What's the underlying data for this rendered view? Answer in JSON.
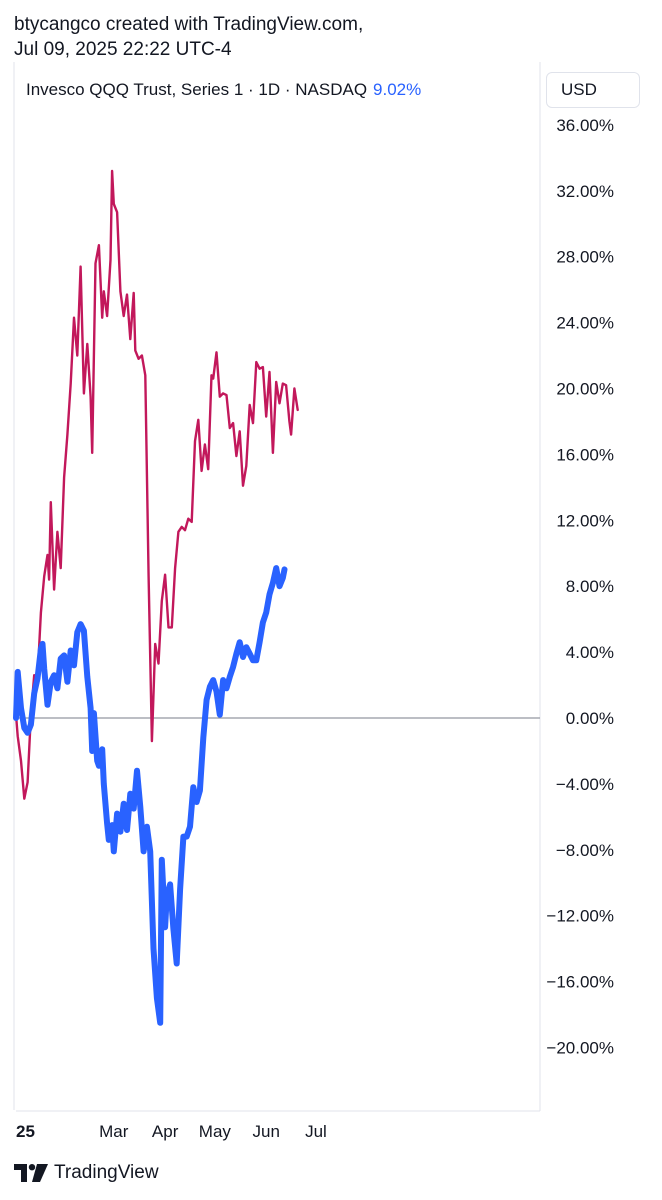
{
  "header": {
    "line1": "btycangco created with TradingView.com,",
    "line2": "Jul 09, 2025 22:22 UTC-4"
  },
  "legend": {
    "symbol": "Invesco QQQ Trust, Series 1 · 1D · NASDAQ",
    "change": "9.02%"
  },
  "currency_button": "USD",
  "footer": {
    "brand": "TradingView"
  },
  "colors": {
    "primary_series": "#2962ff",
    "comparison_series": "#c2185b",
    "baseline": "#9598a1"
  },
  "chart_data": {
    "type": "line",
    "title": "",
    "ylabel": "",
    "xlabel": "",
    "y_unit": "%",
    "ylim": [
      -22,
      38
    ],
    "y_ticks": [
      "36.00%",
      "32.00%",
      "28.00%",
      "24.00%",
      "20.00%",
      "16.00%",
      "12.00%",
      "8.00%",
      "4.00%",
      "0.00%",
      "−4.00%",
      "−8.00%",
      "−12.00%",
      "−16.00%",
      "−20.00%"
    ],
    "y_tick_values": [
      36,
      32,
      28,
      24,
      20,
      16,
      12,
      8,
      4,
      0,
      -4,
      -8,
      -12,
      -16,
      -20
    ],
    "x_ticks": [
      "25",
      "Mar",
      "Apr",
      "May",
      "Jun",
      "Jul"
    ],
    "x_tick_dates": [
      "2025-01-01",
      "2025-03-01",
      "2025-04-01",
      "2025-05-01",
      "2025-06-01",
      "2025-07-01"
    ],
    "x_range": [
      "2025-01-01",
      "2025-07-15"
    ],
    "grid": false,
    "baseline": 0,
    "series": [
      {
        "name": "Invesco QQQ Trust, Series 1",
        "color": "#2962ff",
        "points": [
          [
            "2025-01-01",
            0.0
          ],
          [
            "2025-01-02",
            2.8
          ],
          [
            "2025-01-04",
            0.6
          ],
          [
            "2025-01-06",
            -0.6
          ],
          [
            "2025-01-08",
            -0.9
          ],
          [
            "2025-01-10",
            -0.4
          ],
          [
            "2025-01-12",
            1.5
          ],
          [
            "2025-01-14",
            2.4
          ],
          [
            "2025-01-16",
            4.2
          ],
          [
            "2025-01-17",
            4.5
          ],
          [
            "2025-01-18",
            3.0
          ],
          [
            "2025-01-20",
            0.8
          ],
          [
            "2025-01-22",
            2.2
          ],
          [
            "2025-01-24",
            2.6
          ],
          [
            "2025-01-26",
            1.8
          ],
          [
            "2025-01-28",
            3.6
          ],
          [
            "2025-01-30",
            3.8
          ],
          [
            "2025-02-01",
            2.2
          ],
          [
            "2025-02-03",
            4.1
          ],
          [
            "2025-02-05",
            3.2
          ],
          [
            "2025-02-07",
            5.2
          ],
          [
            "2025-02-09",
            5.7
          ],
          [
            "2025-02-11",
            5.3
          ],
          [
            "2025-02-13",
            2.5
          ],
          [
            "2025-02-15",
            0.6
          ],
          [
            "2025-02-16",
            -2.0
          ],
          [
            "2025-02-17",
            0.3
          ],
          [
            "2025-02-19",
            -2.6
          ],
          [
            "2025-02-20",
            -2.9
          ],
          [
            "2025-02-22",
            -1.9
          ],
          [
            "2025-02-23",
            -4.0
          ],
          [
            "2025-02-25",
            -6.4
          ],
          [
            "2025-02-26",
            -7.4
          ],
          [
            "2025-02-28",
            -6.5
          ],
          [
            "2025-03-01",
            -8.1
          ],
          [
            "2025-03-03",
            -5.8
          ],
          [
            "2025-03-05",
            -6.9
          ],
          [
            "2025-03-07",
            -5.2
          ],
          [
            "2025-03-09",
            -6.8
          ],
          [
            "2025-03-11",
            -4.6
          ],
          [
            "2025-03-13",
            -5.5
          ],
          [
            "2025-03-15",
            -3.2
          ],
          [
            "2025-03-17",
            -5.4
          ],
          [
            "2025-03-19",
            -8.1
          ],
          [
            "2025-03-21",
            -6.6
          ],
          [
            "2025-03-23",
            -8.1
          ],
          [
            "2025-03-25",
            -14.0
          ],
          [
            "2025-03-27",
            -17.0
          ],
          [
            "2025-03-29",
            -18.5
          ],
          [
            "2025-03-30",
            -8.6
          ],
          [
            "2025-04-01",
            -12.7
          ],
          [
            "2025-04-02",
            -10.8
          ],
          [
            "2025-04-04",
            -10.1
          ],
          [
            "2025-04-06",
            -12.8
          ],
          [
            "2025-04-08",
            -14.9
          ],
          [
            "2025-04-10",
            -10.4
          ],
          [
            "2025-04-12",
            -7.2
          ],
          [
            "2025-04-14",
            -7.2
          ],
          [
            "2025-04-16",
            -6.6
          ],
          [
            "2025-04-18",
            -4.2
          ],
          [
            "2025-04-20",
            -5.1
          ],
          [
            "2025-04-22",
            -4.4
          ],
          [
            "2025-04-24",
            -1.2
          ],
          [
            "2025-04-26",
            1.1
          ],
          [
            "2025-04-28",
            1.9
          ],
          [
            "2025-04-30",
            2.3
          ],
          [
            "2025-05-02",
            1.6
          ],
          [
            "2025-05-04",
            0.2
          ],
          [
            "2025-05-06",
            2.3
          ],
          [
            "2025-05-08",
            1.8
          ],
          [
            "2025-05-10",
            2.5
          ],
          [
            "2025-05-12",
            3.1
          ],
          [
            "2025-05-14",
            3.9
          ],
          [
            "2025-05-16",
            4.6
          ],
          [
            "2025-05-18",
            3.7
          ],
          [
            "2025-05-20",
            4.3
          ],
          [
            "2025-05-22",
            3.9
          ],
          [
            "2025-05-24",
            3.5
          ],
          [
            "2025-05-26",
            3.5
          ],
          [
            "2025-05-28",
            4.6
          ],
          [
            "2025-05-30",
            5.8
          ],
          [
            "2025-06-01",
            6.4
          ],
          [
            "2025-06-03",
            7.5
          ],
          [
            "2025-06-05",
            8.2
          ],
          [
            "2025-06-07",
            9.1
          ],
          [
            "2025-06-09",
            8.0
          ],
          [
            "2025-06-11",
            8.5
          ],
          [
            "2025-06-12",
            9.02
          ]
        ]
      },
      {
        "name": "",
        "color": "#c2185b",
        "points": [
          [
            "2025-01-01",
            0.2
          ],
          [
            "2025-01-02",
            -1.1
          ],
          [
            "2025-01-04",
            -2.6
          ],
          [
            "2025-01-06",
            -4.9
          ],
          [
            "2025-01-08",
            -3.9
          ],
          [
            "2025-01-10",
            0.2
          ],
          [
            "2025-01-12",
            2.6
          ],
          [
            "2025-01-14",
            2.4
          ],
          [
            "2025-01-16",
            6.4
          ],
          [
            "2025-01-18",
            8.6
          ],
          [
            "2025-01-20",
            9.9
          ],
          [
            "2025-01-21",
            8.4
          ],
          [
            "2025-01-22",
            13.1
          ],
          [
            "2025-01-24",
            7.8
          ],
          [
            "2025-01-26",
            11.3
          ],
          [
            "2025-01-28",
            9.1
          ],
          [
            "2025-01-30",
            14.6
          ],
          [
            "2025-02-01",
            17.2
          ],
          [
            "2025-02-03",
            20.3
          ],
          [
            "2025-02-05",
            24.3
          ],
          [
            "2025-02-07",
            22.0
          ],
          [
            "2025-02-09",
            27.4
          ],
          [
            "2025-02-11",
            19.7
          ],
          [
            "2025-02-13",
            22.7
          ],
          [
            "2025-02-15",
            19.5
          ],
          [
            "2025-02-16",
            16.1
          ],
          [
            "2025-02-18",
            27.6
          ],
          [
            "2025-02-20",
            28.7
          ],
          [
            "2025-02-22",
            24.3
          ],
          [
            "2025-02-23",
            25.9
          ],
          [
            "2025-02-25",
            24.4
          ],
          [
            "2025-02-27",
            27.8
          ],
          [
            "2025-02-28",
            33.2
          ],
          [
            "2025-03-01",
            31.2
          ],
          [
            "2025-03-03",
            30.7
          ],
          [
            "2025-03-05",
            25.9
          ],
          [
            "2025-03-07",
            24.4
          ],
          [
            "2025-03-09",
            25.7
          ],
          [
            "2025-03-11",
            23.0
          ],
          [
            "2025-03-13",
            25.8
          ],
          [
            "2025-03-14",
            22.3
          ],
          [
            "2025-03-16",
            21.8
          ],
          [
            "2025-03-18",
            22.0
          ],
          [
            "2025-03-20",
            20.8
          ],
          [
            "2025-03-22",
            8.6
          ],
          [
            "2025-03-24",
            -1.4
          ],
          [
            "2025-03-26",
            4.5
          ],
          [
            "2025-03-28",
            3.3
          ],
          [
            "2025-03-30",
            7.1
          ],
          [
            "2025-04-01",
            8.7
          ],
          [
            "2025-04-03",
            5.5
          ],
          [
            "2025-04-05",
            5.5
          ],
          [
            "2025-04-07",
            9.1
          ],
          [
            "2025-04-09",
            11.3
          ],
          [
            "2025-04-11",
            11.6
          ],
          [
            "2025-04-13",
            11.4
          ],
          [
            "2025-04-15",
            12.1
          ],
          [
            "2025-04-17",
            11.9
          ],
          [
            "2025-04-19",
            16.8
          ],
          [
            "2025-04-21",
            18.1
          ],
          [
            "2025-04-23",
            15.0
          ],
          [
            "2025-04-25",
            16.6
          ],
          [
            "2025-04-27",
            15.1
          ],
          [
            "2025-04-29",
            20.8
          ],
          [
            "2025-04-30",
            20.6
          ],
          [
            "2025-05-02",
            22.2
          ],
          [
            "2025-05-04",
            19.5
          ],
          [
            "2025-05-06",
            19.7
          ],
          [
            "2025-05-08",
            19.6
          ],
          [
            "2025-05-10",
            17.6
          ],
          [
            "2025-05-12",
            17.9
          ],
          [
            "2025-05-14",
            15.9
          ],
          [
            "2025-05-16",
            17.4
          ],
          [
            "2025-05-18",
            14.1
          ],
          [
            "2025-05-20",
            15.3
          ],
          [
            "2025-05-22",
            19.0
          ],
          [
            "2025-05-24",
            17.9
          ],
          [
            "2025-05-26",
            21.6
          ],
          [
            "2025-05-28",
            21.2
          ],
          [
            "2025-05-30",
            21.3
          ],
          [
            "2025-06-01",
            18.3
          ],
          [
            "2025-06-03",
            21.0
          ],
          [
            "2025-06-05",
            16.1
          ],
          [
            "2025-06-07",
            20.4
          ],
          [
            "2025-06-09",
            19.1
          ],
          [
            "2025-06-11",
            20.3
          ],
          [
            "2025-06-13",
            20.2
          ],
          [
            "2025-06-15",
            18.0
          ],
          [
            "2025-06-16",
            17.2
          ],
          [
            "2025-06-18",
            20.0
          ],
          [
            "2025-06-20",
            18.7
          ]
        ]
      }
    ]
  }
}
